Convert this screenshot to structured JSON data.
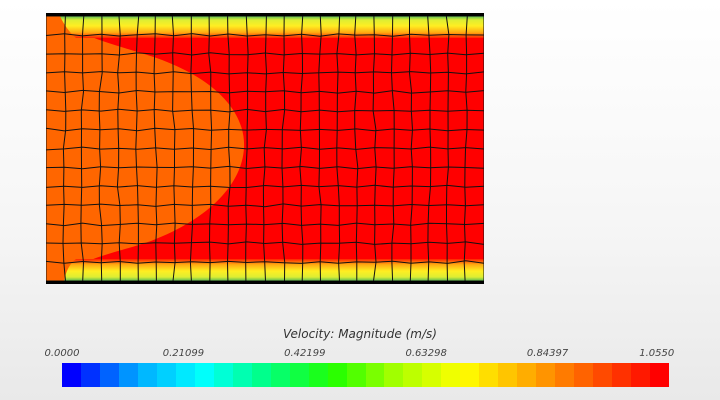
{
  "chart_data": {
    "type": "heatmap",
    "title": "Velocity: Magnitude (m/s)",
    "quantity": "Velocity: Magnitude",
    "units": "m/s",
    "colorbar": {
      "min": 0.0,
      "max": 1.055,
      "tick_labels": [
        "0.0000",
        "0.21099",
        "0.42199",
        "0.63298",
        "0.84397",
        "1.0550"
      ],
      "tick_values": [
        0.0,
        0.21099,
        0.42199,
        0.63298,
        0.84397,
        1.055
      ],
      "segments": 32,
      "colormap": [
        "#0000ff",
        "#00aaff",
        "#00ffff",
        "#00ff80",
        "#22ff00",
        "#aaff00",
        "#ffff00",
        "#ffaa00",
        "#ff5500",
        "#ff0000"
      ]
    },
    "field": {
      "mesh_cells_x": 24,
      "mesh_cells_y": 14,
      "regions": [
        {
          "name": "core",
          "approx_value_range": [
            0.95,
            1.055
          ],
          "color": "#ff0000"
        },
        {
          "name": "inlet-region",
          "approx_value_range": [
            0.9,
            0.97
          ],
          "color": "#ff6600"
        },
        {
          "name": "near-wall",
          "approx_value_range": [
            0.55,
            0.9
          ],
          "color": "#ffee00"
        }
      ]
    },
    "grid": true
  }
}
